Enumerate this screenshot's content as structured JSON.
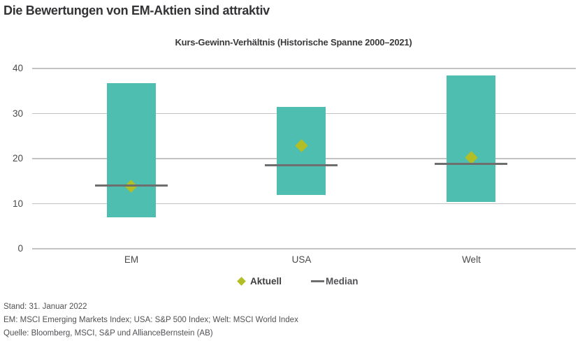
{
  "page_title": "Die Bewertungen von EM-Aktien sind attraktiv",
  "chart_data": {
    "type": "range-bar",
    "title": "Kurs-Gewinn-Verhältnis (Historische Spanne 2000–2021)",
    "categories": [
      "EM",
      "USA",
      "Welt"
    ],
    "range_low": [
      7.0,
      11.9,
      10.4
    ],
    "range_high": [
      36.8,
      31.5,
      38.4
    ],
    "median": [
      14.0,
      18.5,
      18.8
    ],
    "aktuell": [
      13.8,
      22.9,
      20.2
    ],
    "ylim": [
      0,
      40
    ],
    "yticks": [
      0,
      10,
      20,
      30,
      40
    ],
    "grid": true,
    "legend_position": "bottom-center",
    "legend": [
      {
        "label": "Aktuell",
        "marker": "diamond"
      },
      {
        "label": "Median",
        "marker": "line"
      }
    ],
    "colors": {
      "range_bar": "#4ebeb1",
      "aktuell_diamond": "#b2be25",
      "median_line": "#6e6e6e",
      "gridline": "#c3c3c4"
    }
  },
  "footer": [
    "Stand: 31. Januar 2022",
    "EM: MSCI Emerging Markets Index; USA: S&P 500 Index; Welt: MSCI World Index",
    "Quelle: Bloomberg, MSCI, S&P und AllianceBernstein (AB)"
  ]
}
